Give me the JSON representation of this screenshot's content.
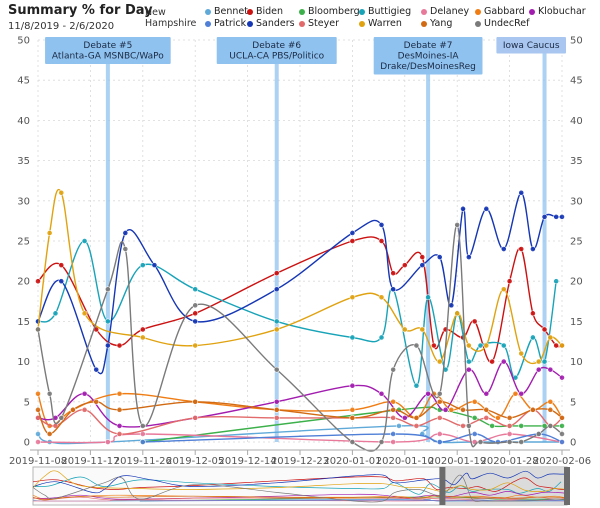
{
  "header": {
    "title": "Summary % for Day",
    "date_range": "11/8/2019 - 2/6/2020",
    "region": "New Hampshire"
  },
  "chart_data": {
    "type": "line",
    "title": "Summary % for Day",
    "subtitle": "11/8/2019 - 2/6/2020",
    "xlabel": "",
    "ylabel": "",
    "x_range": [
      "2019-11-08",
      "2020-02-06"
    ],
    "ylim": [
      0,
      50
    ],
    "yticks": [
      0,
      5,
      10,
      15,
      20,
      25,
      30,
      35,
      40,
      45,
      50
    ],
    "xticks": [
      "2019-11-08",
      "2019-11-17",
      "2019-11-26",
      "2019-12-05",
      "2019-12-14",
      "2019-12-23",
      "2020-01-01",
      "2020-01-10",
      "2020-01-19",
      "2020-01-28",
      "2020-02-06"
    ],
    "grid": true,
    "legend_position": "top",
    "events": [
      {
        "date": "2019-11-20",
        "label": "Debate #5 Atlanta-GA MSNBC/WaPo"
      },
      {
        "date": "2019-12-19",
        "label": "Debate #6 UCLA-CA PBS/Politico"
      },
      {
        "date": "2020-01-14",
        "label": "Debate #7 DesMoines-IA Drake/DesMoinesReg"
      },
      {
        "date": "2020-02-03",
        "label": "Iowa Caucus"
      }
    ],
    "series": [
      {
        "name": "Bennet",
        "color": "#5fa9d9",
        "points": [
          [
            "2019-11-08",
            1
          ],
          [
            "2019-11-10",
            0
          ],
          [
            "2019-11-20",
            0
          ],
          [
            "2020-01-09",
            2
          ],
          [
            "2020-01-13",
            1
          ],
          [
            "2020-01-16",
            0
          ],
          [
            "2020-01-22",
            0
          ],
          [
            "2020-02-06",
            0
          ]
        ]
      },
      {
        "name": "Biden",
        "color": "#cc1111",
        "points": [
          [
            "2019-11-08",
            20
          ],
          [
            "2019-11-12",
            22
          ],
          [
            "2019-11-18",
            14
          ],
          [
            "2019-11-22",
            12
          ],
          [
            "2019-11-26",
            14
          ],
          [
            "2019-12-05",
            16
          ],
          [
            "2019-12-19",
            21
          ],
          [
            "2020-01-01",
            25
          ],
          [
            "2020-01-06",
            25
          ],
          [
            "2020-01-08",
            21
          ],
          [
            "2020-01-10",
            22
          ],
          [
            "2020-01-13",
            23
          ],
          [
            "2020-01-15",
            12
          ],
          [
            "2020-01-17",
            14
          ],
          [
            "2020-01-20",
            13
          ],
          [
            "2020-01-22",
            15
          ],
          [
            "2020-01-25",
            10
          ],
          [
            "2020-01-28",
            20
          ],
          [
            "2020-01-30",
            24
          ],
          [
            "2020-02-01",
            16
          ],
          [
            "2020-02-03",
            14
          ],
          [
            "2020-02-05",
            12
          ],
          [
            "2020-02-06",
            12
          ]
        ]
      },
      {
        "name": "Bloomberg",
        "color": "#3cb04a",
        "points": [
          [
            "2019-11-26",
            0
          ],
          [
            "2020-01-09",
            4
          ],
          [
            "2020-01-16",
            4
          ],
          [
            "2020-01-22",
            3
          ],
          [
            "2020-01-25",
            2
          ],
          [
            "2020-01-28",
            2
          ],
          [
            "2020-01-30",
            2
          ],
          [
            "2020-02-03",
            2
          ],
          [
            "2020-02-06",
            2
          ]
        ]
      },
      {
        "name": "Buttigieg",
        "color": "#17a3b8",
        "points": [
          [
            "2019-11-08",
            15
          ],
          [
            "2019-11-11",
            16
          ],
          [
            "2019-11-16",
            25
          ],
          [
            "2019-11-20",
            15
          ],
          [
            "2019-11-26",
            22
          ],
          [
            "2019-12-05",
            19
          ],
          [
            "2019-12-19",
            15
          ],
          [
            "2020-01-01",
            13
          ],
          [
            "2020-01-06",
            13
          ],
          [
            "2020-01-08",
            19
          ],
          [
            "2020-01-12",
            7
          ],
          [
            "2020-01-14",
            18
          ],
          [
            "2020-01-17",
            9
          ],
          [
            "2020-01-19",
            16
          ],
          [
            "2020-01-21",
            10
          ],
          [
            "2020-01-23",
            12
          ],
          [
            "2020-01-27",
            12
          ],
          [
            "2020-01-29",
            8
          ],
          [
            "2020-02-01",
            13
          ],
          [
            "2020-02-03",
            10
          ],
          [
            "2020-02-05",
            20
          ]
        ]
      },
      {
        "name": "Delaney",
        "color": "#e8799b",
        "points": [
          [
            "2019-11-08",
            0
          ],
          [
            "2019-11-20",
            0
          ],
          [
            "2019-11-26",
            1
          ],
          [
            "2020-01-08",
            0
          ],
          [
            "2020-01-16",
            1
          ],
          [
            "2020-01-22",
            0
          ],
          [
            "2020-01-28",
            1
          ],
          [
            "2020-02-06",
            0
          ]
        ]
      },
      {
        "name": "Gabbard",
        "color": "#f07d14",
        "points": [
          [
            "2019-11-08",
            6
          ],
          [
            "2019-11-10",
            2
          ],
          [
            "2019-11-14",
            4
          ],
          [
            "2019-11-22",
            6
          ],
          [
            "2019-12-05",
            5
          ],
          [
            "2019-12-19",
            4
          ],
          [
            "2020-01-01",
            4
          ],
          [
            "2020-01-08",
            5
          ],
          [
            "2020-01-12",
            3
          ],
          [
            "2020-01-15",
            6
          ],
          [
            "2020-01-18",
            4
          ],
          [
            "2020-01-22",
            5
          ],
          [
            "2020-01-26",
            3
          ],
          [
            "2020-01-29",
            6
          ],
          [
            "2020-02-01",
            4
          ],
          [
            "2020-02-04",
            5
          ],
          [
            "2020-02-06",
            3
          ]
        ]
      },
      {
        "name": "Klobuchar",
        "color": "#a21caf",
        "points": [
          [
            "2019-11-08",
            3
          ],
          [
            "2019-11-11",
            3
          ],
          [
            "2019-11-16",
            6
          ],
          [
            "2019-11-22",
            2
          ],
          [
            "2019-12-05",
            3
          ],
          [
            "2019-12-19",
            5
          ],
          [
            "2020-01-01",
            7
          ],
          [
            "2020-01-06",
            6
          ],
          [
            "2020-01-10",
            3
          ],
          [
            "2020-01-14",
            6
          ],
          [
            "2020-01-17",
            4
          ],
          [
            "2020-01-21",
            9
          ],
          [
            "2020-01-24",
            6
          ],
          [
            "2020-01-27",
            10
          ],
          [
            "2020-01-30",
            6
          ],
          [
            "2020-02-02",
            9
          ],
          [
            "2020-02-04",
            9
          ],
          [
            "2020-02-06",
            8
          ]
        ]
      },
      {
        "name": "Patrick",
        "color": "#4f7fd6",
        "points": [
          [
            "2019-11-26",
            0
          ],
          [
            "2020-01-08",
            1
          ],
          [
            "2020-01-16",
            0
          ],
          [
            "2020-01-22",
            1
          ],
          [
            "2020-01-26",
            0
          ],
          [
            "2020-02-02",
            1
          ],
          [
            "2020-02-06",
            0
          ]
        ]
      },
      {
        "name": "Sanders",
        "color": "#1536b5",
        "points": [
          [
            "2019-11-08",
            15
          ],
          [
            "2019-11-12",
            20
          ],
          [
            "2019-11-18",
            9
          ],
          [
            "2019-11-20",
            12
          ],
          [
            "2019-11-23",
            26
          ],
          [
            "2019-11-28",
            22
          ],
          [
            "2019-12-05",
            15
          ],
          [
            "2019-12-19",
            19
          ],
          [
            "2020-01-01",
            26
          ],
          [
            "2020-01-06",
            27
          ],
          [
            "2020-01-08",
            19
          ],
          [
            "2020-01-13",
            22
          ],
          [
            "2020-01-16",
            23
          ],
          [
            "2020-01-18",
            17
          ],
          [
            "2020-01-20",
            29
          ],
          [
            "2020-01-21",
            23
          ],
          [
            "2020-01-24",
            29
          ],
          [
            "2020-01-27",
            24
          ],
          [
            "2020-01-30",
            31
          ],
          [
            "2020-02-01",
            24
          ],
          [
            "2020-02-03",
            28
          ],
          [
            "2020-02-05",
            28
          ],
          [
            "2020-02-06",
            28
          ]
        ]
      },
      {
        "name": "Steyer",
        "color": "#e26a6a",
        "points": [
          [
            "2019-11-08",
            3
          ],
          [
            "2019-11-11",
            2
          ],
          [
            "2019-11-16",
            4
          ],
          [
            "2019-11-22",
            1
          ],
          [
            "2019-12-05",
            3
          ],
          [
            "2019-12-19",
            3
          ],
          [
            "2020-01-01",
            3
          ],
          [
            "2020-01-08",
            3
          ],
          [
            "2020-01-12",
            2
          ],
          [
            "2020-01-16",
            3
          ],
          [
            "2020-01-20",
            2
          ],
          [
            "2020-01-24",
            3
          ],
          [
            "2020-01-28",
            2
          ],
          [
            "2020-02-01",
            4
          ],
          [
            "2020-02-04",
            2
          ],
          [
            "2020-02-06",
            3
          ]
        ]
      },
      {
        "name": "Warren",
        "color": "#e0a20f",
        "points": [
          [
            "2019-11-08",
            14
          ],
          [
            "2019-11-10",
            26
          ],
          [
            "2019-11-12",
            31
          ],
          [
            "2019-11-16",
            16
          ],
          [
            "2019-11-26",
            13
          ],
          [
            "2019-12-05",
            12
          ],
          [
            "2019-12-19",
            14
          ],
          [
            "2020-01-01",
            18
          ],
          [
            "2020-01-06",
            18
          ],
          [
            "2020-01-10",
            14
          ],
          [
            "2020-01-13",
            14
          ],
          [
            "2020-01-16",
            10
          ],
          [
            "2020-01-19",
            16
          ],
          [
            "2020-01-21",
            12
          ],
          [
            "2020-01-24",
            12
          ],
          [
            "2020-01-27",
            19
          ],
          [
            "2020-01-30",
            11
          ],
          [
            "2020-02-02",
            10
          ],
          [
            "2020-02-04",
            13
          ],
          [
            "2020-02-06",
            12
          ]
        ]
      },
      {
        "name": "Yang",
        "color": "#d26a13",
        "points": [
          [
            "2019-11-08",
            4
          ],
          [
            "2019-11-10",
            1
          ],
          [
            "2019-11-14",
            4
          ],
          [
            "2019-11-18",
            5
          ],
          [
            "2019-11-22",
            4
          ],
          [
            "2019-12-05",
            5
          ],
          [
            "2019-12-19",
            4
          ],
          [
            "2020-01-01",
            3
          ],
          [
            "2020-01-08",
            4
          ],
          [
            "2020-01-12",
            3
          ],
          [
            "2020-01-16",
            5
          ],
          [
            "2020-01-20",
            4
          ],
          [
            "2020-01-24",
            4
          ],
          [
            "2020-01-28",
            3
          ],
          [
            "2020-02-01",
            4
          ],
          [
            "2020-02-04",
            4
          ],
          [
            "2020-02-06",
            3
          ]
        ]
      },
      {
        "name": "UndecRef",
        "color": "#7a7a7a",
        "points": [
          [
            "2019-11-08",
            14
          ],
          [
            "2019-11-10",
            6
          ],
          [
            "2019-11-12",
            3
          ],
          [
            "2019-11-20",
            19
          ],
          [
            "2019-11-23",
            24
          ],
          [
            "2019-11-26",
            2
          ],
          [
            "2019-12-05",
            17
          ],
          [
            "2019-12-19",
            9
          ],
          [
            "2020-01-01",
            0
          ],
          [
            "2020-01-06",
            0
          ],
          [
            "2020-01-08",
            9
          ],
          [
            "2020-01-12",
            12
          ],
          [
            "2020-01-16",
            6
          ],
          [
            "2020-01-19",
            27
          ],
          [
            "2020-01-21",
            2
          ],
          [
            "2020-01-23",
            0
          ],
          [
            "2020-01-28",
            0
          ],
          [
            "2020-01-30",
            0
          ],
          [
            "2020-02-02",
            1
          ],
          [
            "2020-02-04",
            2
          ],
          [
            "2020-02-06",
            1
          ]
        ]
      }
    ]
  }
}
